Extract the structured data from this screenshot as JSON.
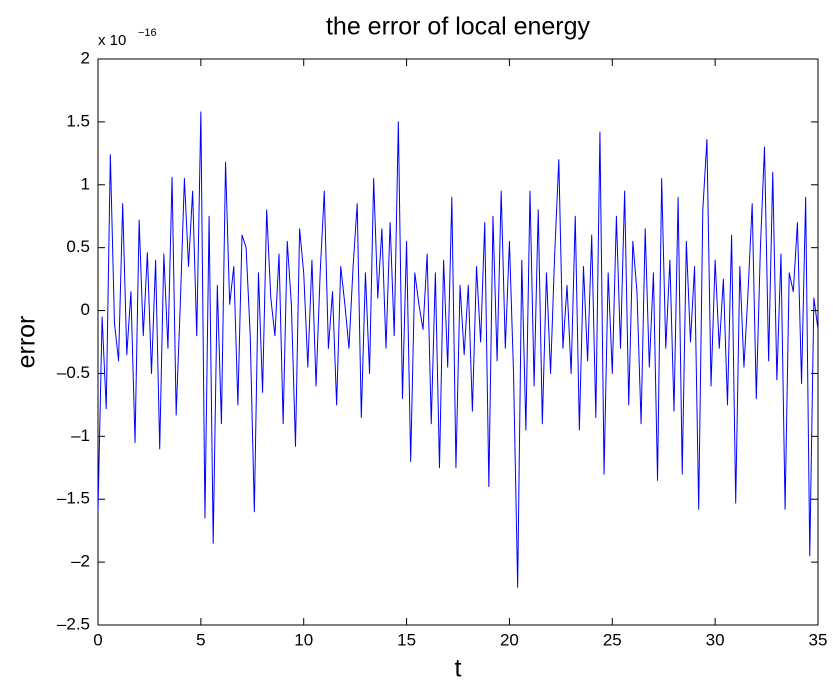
{
  "chart_data": {
    "type": "line",
    "title": "the error of local energy",
    "x_label": "t",
    "y_label": "error",
    "y_scale_label": "x 10",
    "y_scale_exponent": "−16",
    "color": "#0000ff",
    "x": [
      0,
      0.2,
      0.4,
      0.6,
      0.8,
      1,
      1.2,
      1.4,
      1.6,
      1.8,
      2,
      2.2,
      2.4,
      2.6,
      2.8,
      3,
      3.2,
      3.4,
      3.6,
      3.8,
      4,
      4.2,
      4.4,
      4.6,
      4.8,
      5,
      5.2,
      5.4,
      5.6,
      5.8,
      6,
      6.2,
      6.4,
      6.6,
      6.8,
      7,
      7.2,
      7.4,
      7.6,
      7.8,
      8,
      8.2,
      8.4,
      8.6,
      8.8,
      9,
      9.2,
      9.4,
      9.6,
      9.8,
      10,
      10.2,
      10.4,
      10.6,
      10.8,
      11,
      11.2,
      11.4,
      11.6,
      11.8,
      12,
      12.2,
      12.4,
      12.6,
      12.8,
      13,
      13.2,
      13.4,
      13.6,
      13.8,
      14,
      14.2,
      14.4,
      14.6,
      14.8,
      15,
      15.2,
      15.4,
      15.6,
      15.8,
      16,
      16.2,
      16.4,
      16.6,
      16.8,
      17,
      17.2,
      17.4,
      17.6,
      17.8,
      18,
      18.2,
      18.4,
      18.6,
      18.8,
      19,
      19.2,
      19.4,
      19.6,
      19.8,
      20,
      20.2,
      20.4,
      20.6,
      20.8,
      21,
      21.2,
      21.4,
      21.6,
      21.8,
      22,
      22.2,
      22.4,
      22.6,
      22.8,
      23,
      23.2,
      23.4,
      23.6,
      23.8,
      24,
      24.2,
      24.4,
      24.6,
      24.8,
      25,
      25.2,
      25.4,
      25.6,
      25.8,
      26,
      26.2,
      26.4,
      26.6,
      26.8,
      27,
      27.2,
      27.4,
      27.6,
      27.8,
      28,
      28.2,
      28.4,
      28.6,
      28.8,
      29,
      29.2,
      29.4,
      29.6,
      29.8,
      30,
      30.2,
      30.4,
      30.6,
      30.8,
      31,
      31.2,
      31.4,
      31.6,
      31.8,
      32,
      32.2,
      32.4,
      32.6,
      32.8,
      33,
      33.2,
      33.4,
      33.6,
      33.8,
      34,
      34.2,
      34.4,
      34.6,
      34.8,
      35
    ],
    "values": [
      -1.6,
      -0.05,
      -0.78,
      1.24,
      -0.1,
      -0.4,
      0.85,
      -0.35,
      0.15,
      -1.05,
      0.72,
      -0.2,
      0.46,
      -0.5,
      0.4,
      -1.1,
      0.45,
      -0.3,
      1.06,
      -0.83,
      0.05,
      1.05,
      0.35,
      0.95,
      -0.2,
      1.58,
      -1.65,
      0.75,
      -1.85,
      0.2,
      -0.9,
      1.18,
      0.05,
      0.35,
      -0.75,
      0.6,
      0.5,
      -0.2,
      -1.6,
      0.3,
      -0.65,
      0.8,
      0.1,
      -0.2,
      0.45,
      -0.9,
      0.55,
      0.05,
      -1.08,
      0.65,
      0.3,
      -0.45,
      0.4,
      -0.6,
      0.3,
      0.95,
      -0.3,
      0.15,
      -0.75,
      0.35,
      0.05,
      -0.3,
      0.35,
      0.85,
      -0.85,
      0.3,
      -0.5,
      1.05,
      0.1,
      0.65,
      -0.3,
      0.7,
      -0.2,
      1.5,
      -0.7,
      0.55,
      -1.2,
      0.3,
      0.05,
      -0.15,
      0.45,
      -0.9,
      0.3,
      -1.25,
      0.4,
      -0.45,
      0.9,
      -1.25,
      0.2,
      -0.35,
      0.2,
      -0.8,
      0.35,
      -0.25,
      0.7,
      -1.4,
      0.75,
      -0.4,
      0.95,
      -0.3,
      0.55,
      -0.5,
      -2.2,
      0.4,
      -0.95,
      0.95,
      -0.6,
      0.8,
      -0.9,
      0.3,
      -0.5,
      0.45,
      1.2,
      -0.3,
      0.2,
      -0.5,
      0.75,
      -0.95,
      0.35,
      -0.4,
      0.6,
      -0.85,
      1.42,
      -1.3,
      0.3,
      -0.5,
      0.75,
      -0.3,
      0.95,
      -0.75,
      0.55,
      0.15,
      -0.9,
      0.65,
      -0.45,
      0.3,
      -1.35,
      1.05,
      -0.3,
      0.4,
      -0.8,
      0.9,
      -1.3,
      0.55,
      -0.25,
      0.35,
      -1.58,
      0.8,
      1.36,
      -0.6,
      0.4,
      -0.3,
      0.25,
      -0.75,
      0.6,
      -1.53,
      0.35,
      -0.45,
      0.15,
      0.85,
      -0.7,
      0.5,
      1.3,
      -0.4,
      1.1,
      -0.55,
      0.45,
      -1.58,
      0.3,
      0.15,
      0.7,
      -0.58,
      0.9,
      -1.95,
      0.1,
      -0.15
    ],
    "xlim": [
      0,
      35
    ],
    "xticks": [
      0,
      5,
      10,
      15,
      20,
      25,
      30,
      35
    ],
    "ylim": [
      -2.5,
      2
    ],
    "yticks": [
      {
        "value": -2.5,
        "label": "–2.5"
      },
      {
        "value": -2,
        "label": "–2"
      },
      {
        "value": -1.5,
        "label": "–1.5"
      },
      {
        "value": -1,
        "label": "–1"
      },
      {
        "value": -0.5,
        "label": "–0.5"
      },
      0,
      0.5,
      1,
      1.5,
      2
    ]
  }
}
